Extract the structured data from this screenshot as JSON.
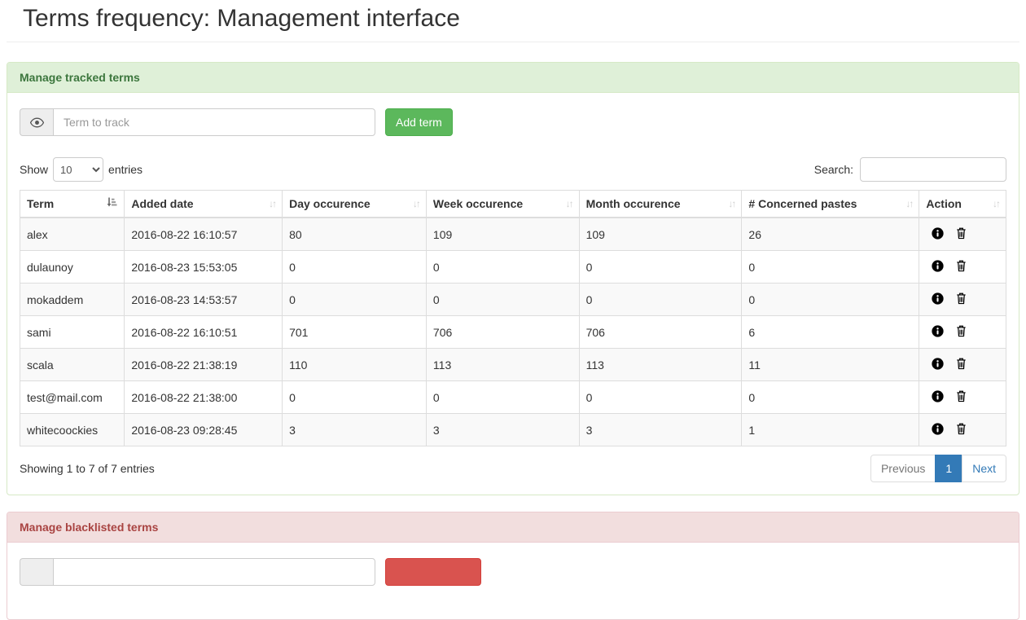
{
  "page": {
    "title": "Terms frequency: Management interface"
  },
  "tracked": {
    "header": "Manage tracked terms",
    "term_input": {
      "placeholder": "Term to track",
      "value": ""
    },
    "add_button": "Add term",
    "length_control": {
      "prefix": "Show",
      "suffix": "entries",
      "value": "10",
      "options": [
        "10"
      ]
    },
    "search": {
      "label": "Search:",
      "value": ""
    },
    "table": {
      "columns": [
        {
          "label": "Term",
          "sort": "asc"
        },
        {
          "label": "Added date",
          "sort": "none"
        },
        {
          "label": "Day occurence",
          "sort": "none"
        },
        {
          "label": "Week occurence",
          "sort": "none"
        },
        {
          "label": "Month occurence",
          "sort": "none"
        },
        {
          "label": "# Concerned pastes",
          "sort": "none"
        },
        {
          "label": "Action",
          "sort": "none"
        }
      ],
      "rows": [
        {
          "term": "alex",
          "added_date": "2016-08-22 16:10:57",
          "day": "80",
          "week": "109",
          "month": "109",
          "pastes": "26"
        },
        {
          "term": "dulaunoy",
          "added_date": "2016-08-23 15:53:05",
          "day": "0",
          "week": "0",
          "month": "0",
          "pastes": "0"
        },
        {
          "term": "mokaddem",
          "added_date": "2016-08-23 14:53:57",
          "day": "0",
          "week": "0",
          "month": "0",
          "pastes": "0"
        },
        {
          "term": "sami",
          "added_date": "2016-08-22 16:10:51",
          "day": "701",
          "week": "706",
          "month": "706",
          "pastes": "6"
        },
        {
          "term": "scala",
          "added_date": "2016-08-22 21:38:19",
          "day": "110",
          "week": "113",
          "month": "113",
          "pastes": "11"
        },
        {
          "term": "test@mail.com",
          "added_date": "2016-08-22 21:38:00",
          "day": "0",
          "week": "0",
          "month": "0",
          "pastes": "0"
        },
        {
          "term": "whitecoockies",
          "added_date": "2016-08-23 09:28:45",
          "day": "3",
          "week": "3",
          "month": "3",
          "pastes": "1"
        }
      ]
    },
    "info": "Showing 1 to 7 of 7 entries",
    "pagination": {
      "previous": "Previous",
      "pages": [
        "1"
      ],
      "active": "1",
      "next": "Next"
    }
  },
  "blacklisted": {
    "header": "Manage blacklisted terms",
    "term_input": {
      "placeholder": "",
      "value": ""
    }
  },
  "icons": {
    "addon": "eye-icon",
    "sort_active": "sort-amount-asc-icon",
    "sort_inactive": "sort-both-icon",
    "row_actions": [
      "info-icon",
      "trash-icon"
    ]
  },
  "colors": {
    "success_header_bg": "#dff0d8",
    "success_text": "#3c763d",
    "success_border": "#d6e9c6",
    "danger_header_bg": "#f2dede",
    "danger_text": "#a94442",
    "danger_border": "#ebccd1",
    "add_button_bg": "#5cb85c",
    "danger_button_bg": "#d9534f",
    "pagination_active": "#337ab7",
    "stripe": "#f9f9f9"
  }
}
